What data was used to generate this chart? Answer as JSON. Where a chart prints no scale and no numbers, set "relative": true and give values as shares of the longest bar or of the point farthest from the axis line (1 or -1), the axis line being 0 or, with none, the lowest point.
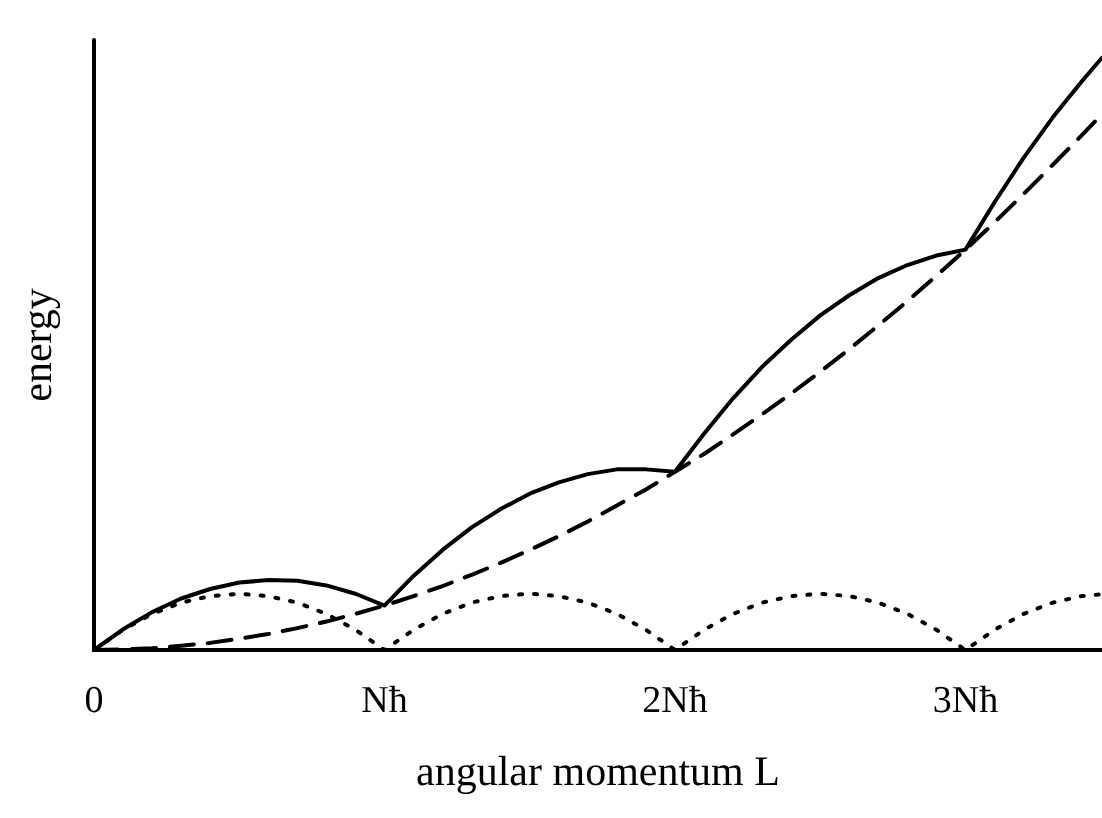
{
  "chart_data": {
    "type": "line",
    "xlabel": "angular momentum L",
    "ylabel": "energy",
    "relative": true,
    "marker": "none",
    "xlim": [
      0,
      3.47
    ],
    "xticks": [
      0,
      {
        "value": 1,
        "label": "Nħ"
      },
      {
        "value": 2,
        "label": "2Nħ"
      },
      {
        "value": 3,
        "label": "3Nħ"
      }
    ],
    "x": [
      0,
      0.1,
      0.2,
      0.3,
      0.4,
      0.5,
      0.6,
      0.7,
      0.8,
      0.9,
      1,
      1.1,
      1.2,
      1.3,
      1.4,
      1.5,
      1.6,
      1.7,
      1.8,
      1.9,
      2,
      2.1,
      2.2,
      2.3,
      2.4,
      2.5,
      2.6,
      2.7,
      2.8,
      2.9,
      3,
      3.1,
      3.2,
      3.3,
      3.4,
      3.47
    ],
    "series": [
      {
        "color": "#000000",
        "line_style": "solid",
        "values": [
          0,
          0.035,
          0.064,
          0.087,
          0.103,
          0.114,
          0.118,
          0.117,
          0.109,
          0.095,
          0.075,
          0.125,
          0.169,
          0.207,
          0.238,
          0.264,
          0.283,
          0.297,
          0.305,
          0.305,
          0.301,
          0.365,
          0.425,
          0.478,
          0.524,
          0.565,
          0.599,
          0.628,
          0.65,
          0.666,
          0.676,
          0.756,
          0.831,
          0.899,
          0.96,
          1
        ]
      },
      {
        "color": "#000000",
        "line_style": "dashed",
        "values": [
          0,
          0.001,
          0.003,
          0.007,
          0.012,
          0.019,
          0.027,
          0.037,
          0.048,
          0.061,
          0.075,
          0.091,
          0.108,
          0.127,
          0.147,
          0.169,
          0.192,
          0.217,
          0.244,
          0.271,
          0.301,
          0.331,
          0.364,
          0.398,
          0.433,
          0.47,
          0.508,
          0.548,
          0.589,
          0.632,
          0.676,
          0.722,
          0.77,
          0.819,
          0.869,
          0.905
        ]
      },
      {
        "color": "#000000",
        "line_style": "dotted",
        "values": [
          0,
          0.034,
          0.061,
          0.08,
          0.091,
          0.095,
          0.091,
          0.08,
          0.061,
          0.034,
          0,
          0.034,
          0.061,
          0.08,
          0.091,
          0.095,
          0.091,
          0.08,
          0.061,
          0.034,
          0,
          0.034,
          0.061,
          0.08,
          0.091,
          0.095,
          0.091,
          0.08,
          0.061,
          0.034,
          0,
          0.034,
          0.061,
          0.08,
          0.091,
          0.094
        ]
      }
    ]
  }
}
